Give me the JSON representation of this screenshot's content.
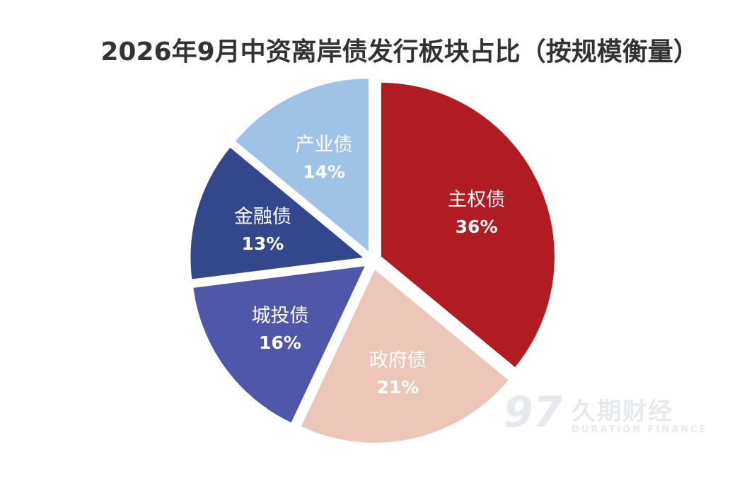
{
  "chart_data": {
    "type": "pie",
    "title": "2026年9月中资离岸债发行板块占比（按规模衡量）",
    "slices": [
      {
        "label": "主权债",
        "value": 36,
        "value_label": "36%",
        "color": "#b11c22"
      },
      {
        "label": "政府债",
        "value": 21,
        "value_label": "21%",
        "color": "#ebc6b9"
      },
      {
        "label": "城投债",
        "value": 16,
        "value_label": "16%",
        "color": "#5157a8"
      },
      {
        "label": "金融债",
        "value": 13,
        "value_label": "13%",
        "color": "#33488c"
      },
      {
        "label": "产业债",
        "value": 14,
        "value_label": "14%",
        "color": "#9ec3e6"
      }
    ],
    "start_angle_deg": 0,
    "direction": "clockwise",
    "exploded": true
  },
  "watermark": {
    "mark": "97",
    "name_cn": "久期财经",
    "name_en": "DURATION FINANCE"
  }
}
